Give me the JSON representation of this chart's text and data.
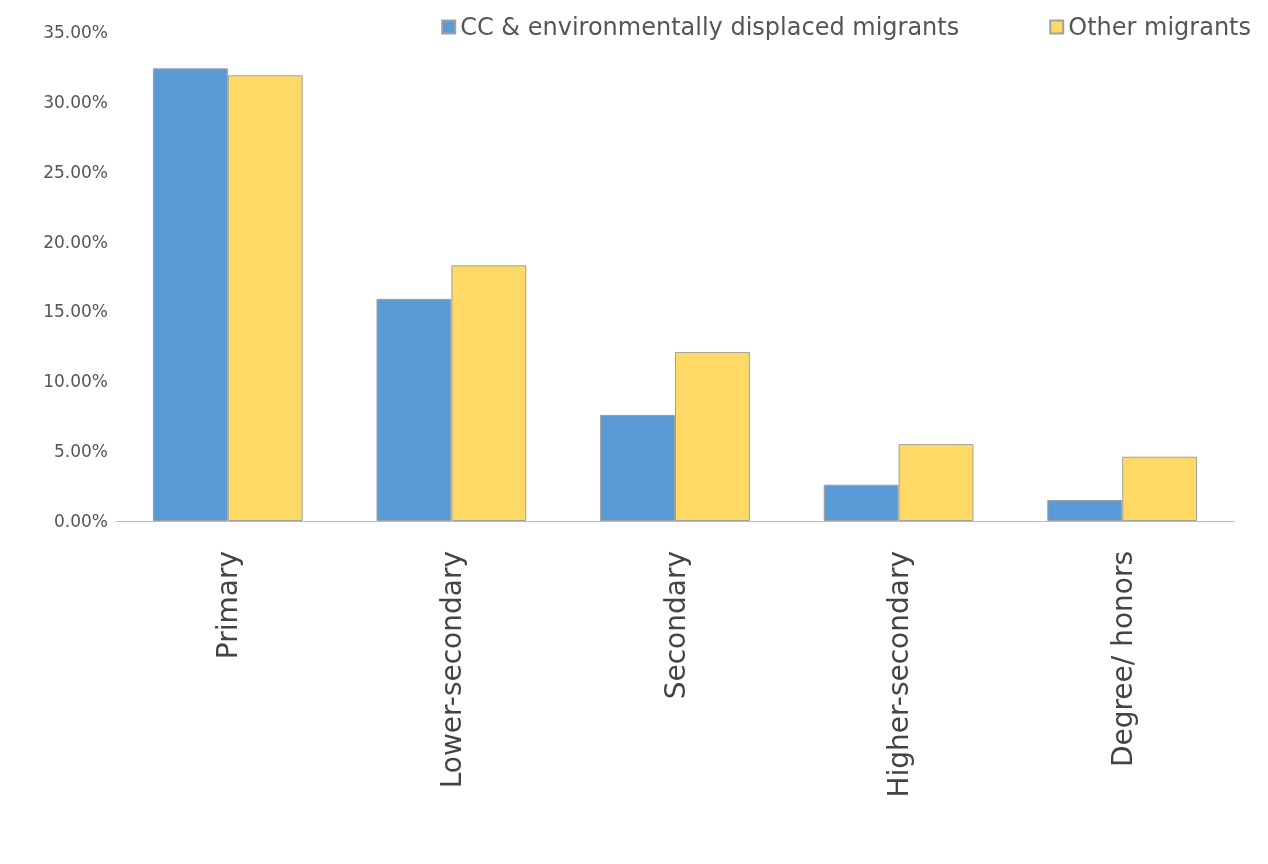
{
  "chart_data": {
    "type": "bar",
    "categories": [
      "Primary",
      "Lower-secondary",
      "Secondary",
      "Higher-secondary",
      "Degree/ honors"
    ],
    "series": [
      {
        "name": "CC & environmentally displaced migrants",
        "color": "#5b9bd5",
        "values": [
          32.4,
          15.9,
          7.6,
          2.6,
          1.5
        ]
      },
      {
        "name": "Other migrants",
        "color": "#ffd966",
        "values": [
          31.9,
          18.3,
          12.1,
          5.5,
          4.6
        ]
      }
    ],
    "ylim": [
      0,
      35
    ],
    "yticks": [
      {
        "value": 0,
        "label": "0.00%"
      },
      {
        "value": 5,
        "label": "5.00%"
      },
      {
        "value": 10,
        "label": "10.00%"
      },
      {
        "value": 15,
        "label": "15.00%"
      },
      {
        "value": 20,
        "label": "20.00%"
      },
      {
        "value": 25,
        "label": "25.00%"
      },
      {
        "value": 30,
        "label": "30.00%"
      },
      {
        "value": 35,
        "label": "35.00%"
      }
    ],
    "grid": false,
    "legend": "top right"
  }
}
